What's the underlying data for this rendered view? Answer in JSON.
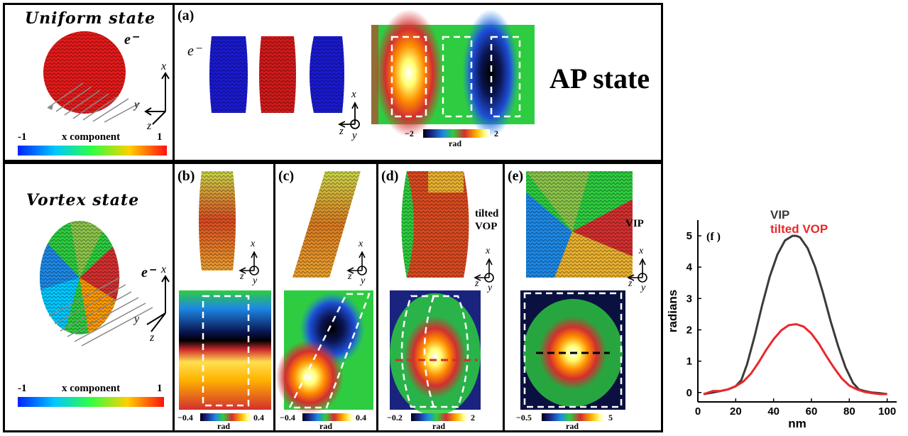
{
  "uniform": {
    "title": "Uniform state",
    "electron": "e⁻",
    "cb_label": "x component",
    "cb_min": "-1",
    "cb_max": "1"
  },
  "vortex": {
    "title": "Vortex state",
    "electron": "e⁻",
    "cb_label": "x component",
    "cb_min": "-1",
    "cb_max": "1"
  },
  "axes": {
    "x": "x",
    "y": "y",
    "z": "z"
  },
  "panel_a": {
    "label": "(a)",
    "electron": "e⁻",
    "ap_text": "AP state",
    "cb_min": "−2",
    "cb_max": "2",
    "unit": "rad"
  },
  "panel_b": {
    "label": "(b)",
    "cb_min": "−0.4",
    "cb_max": "0.4",
    "unit": "rad"
  },
  "panel_c": {
    "label": "(c)",
    "cb_min": "−0.4",
    "cb_max": "0.4",
    "unit": "rad"
  },
  "panel_d": {
    "label": "(d)",
    "annot1": "tilted",
    "annot2": "VOP",
    "cb_min": "−0.2",
    "cb_max": "2",
    "unit": "rad"
  },
  "panel_e": {
    "label": "(e)",
    "annot": "VIP",
    "cb_min": "−0.5",
    "cb_max": "5",
    "unit": "rad"
  },
  "chart_data": {
    "type": "line",
    "panel_label": "(f )",
    "xlabel": "nm",
    "ylabel": "radians",
    "xlim": [
      0,
      105
    ],
    "ylim": [
      -0.3,
      5.5
    ],
    "xticks": [
      0,
      20,
      40,
      60,
      80,
      100
    ],
    "yticks": [
      0,
      1,
      2,
      3,
      4,
      5
    ],
    "legend_placement": "top-center",
    "series": [
      {
        "name": "VIP",
        "color": "#3a3a3a",
        "x": [
          3,
          8,
          12,
          16,
          20,
          23,
          26,
          30,
          34,
          38,
          42,
          46,
          50,
          52,
          54,
          58,
          62,
          66,
          70,
          74,
          78,
          82,
          85,
          88,
          92,
          96,
          100
        ],
        "y": [
          -0.05,
          0.0,
          0.05,
          0.1,
          0.2,
          0.4,
          0.9,
          1.8,
          2.8,
          3.7,
          4.4,
          4.85,
          5.0,
          5.0,
          4.95,
          4.6,
          4.0,
          3.2,
          2.3,
          1.5,
          0.8,
          0.3,
          0.1,
          0.05,
          0.0,
          -0.02,
          -0.05
        ]
      },
      {
        "name": "tilted VOP",
        "color": "#e8282b",
        "x": [
          3,
          8,
          12,
          16,
          20,
          24,
          28,
          32,
          36,
          40,
          44,
          48,
          52,
          56,
          60,
          64,
          68,
          72,
          76,
          80,
          84,
          88,
          92,
          96,
          100
        ],
        "y": [
          -0.05,
          0.05,
          0.05,
          0.1,
          0.2,
          0.35,
          0.6,
          0.95,
          1.35,
          1.7,
          1.98,
          2.15,
          2.18,
          2.1,
          1.88,
          1.55,
          1.15,
          0.78,
          0.45,
          0.22,
          0.1,
          0.02,
          -0.02,
          -0.05,
          -0.05
        ]
      }
    ]
  }
}
